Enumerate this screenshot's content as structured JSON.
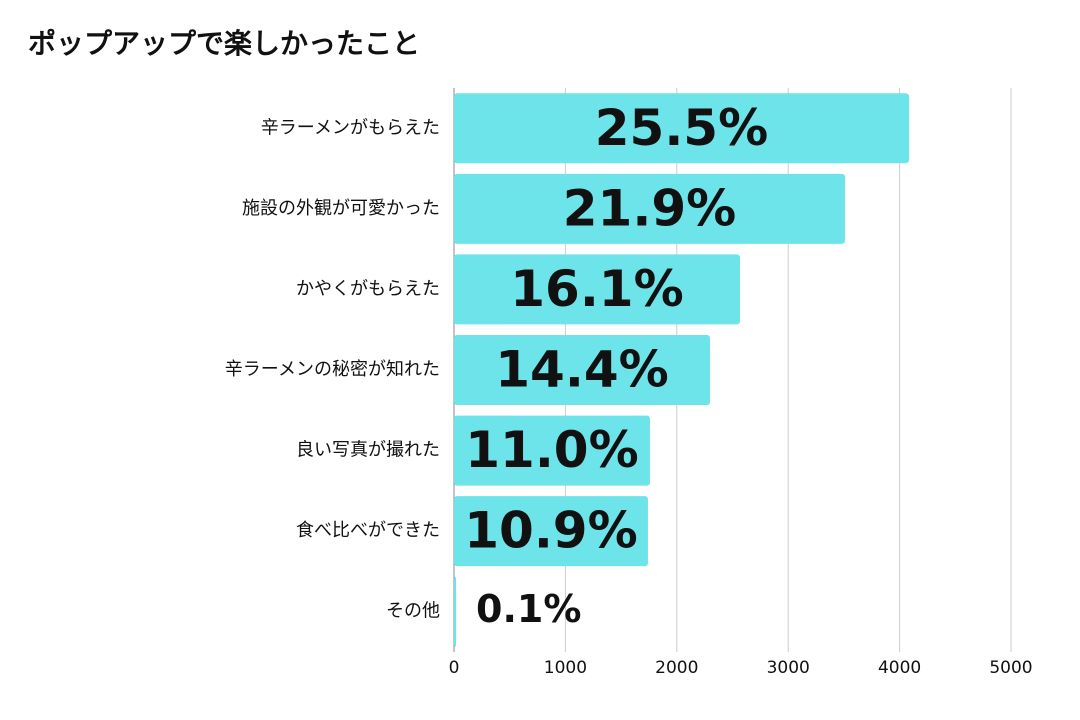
{
  "chart_data": {
    "type": "barh",
    "title": "ポップアップで楽しかったこと",
    "categories": [
      "辛ラーメンがもらえた",
      "施設の外観が可愛かった",
      "かやくがもらえた",
      "辛ラーメンの秘密が知れた",
      "良い写真が撮れた",
      "食べ比べができた",
      "その他"
    ],
    "values": [
      4084,
      3510,
      2567,
      2298,
      1759,
      1741,
      18
    ],
    "value_labels": [
      "25.5%",
      "21.9%",
      "16.1%",
      "14.4%",
      "11.0%",
      "10.9%",
      "0.1%"
    ],
    "color": "#6ce4ea",
    "xlim": [
      0,
      5000
    ],
    "xticks": [
      0,
      1000,
      2000,
      3000,
      4000,
      5000
    ],
    "grid": true
  }
}
